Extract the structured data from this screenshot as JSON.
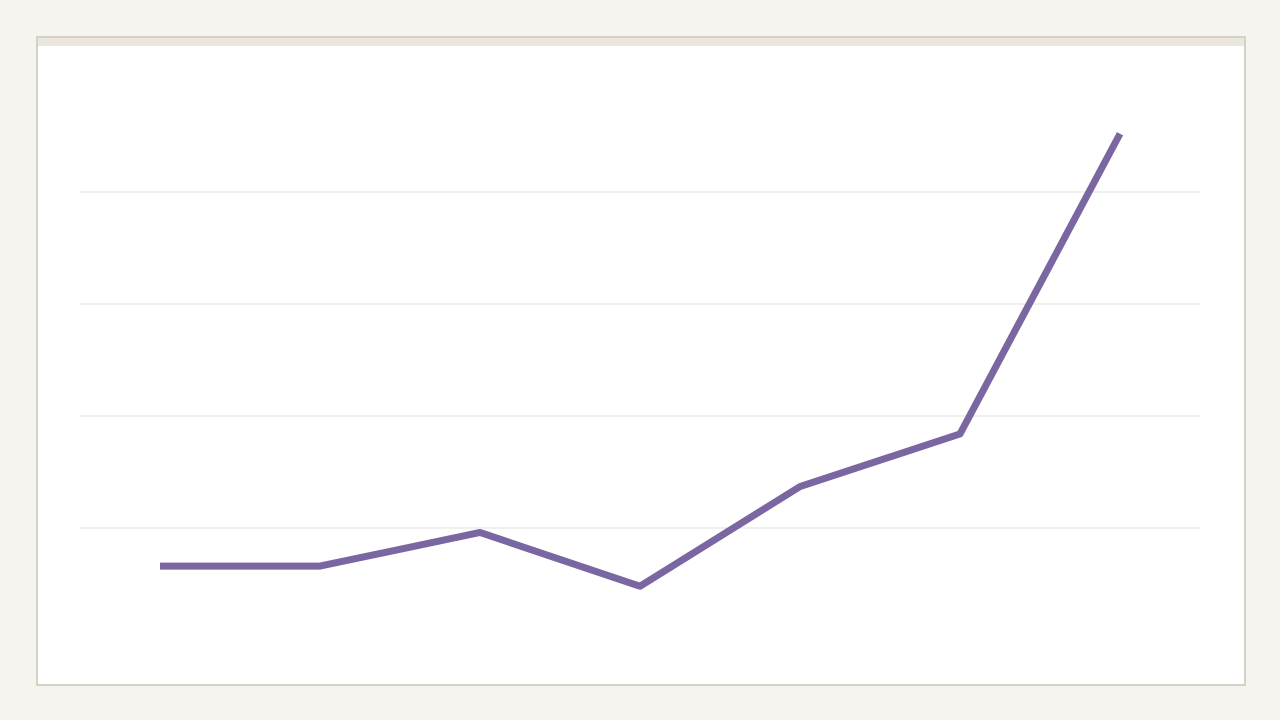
{
  "chart_data": {
    "type": "line",
    "categories": [
      null,
      null,
      null,
      null,
      null,
      null,
      null
    ],
    "series": [
      {
        "color": "#7a66a0",
        "values": [
          0.66,
          0.66,
          0.96,
          0.48,
          1.37,
          1.84,
          4.52
        ]
      }
    ],
    "ylim": [
      0,
      5
    ],
    "yticks": [
      1,
      2,
      3,
      4
    ],
    "grid": true
  }
}
